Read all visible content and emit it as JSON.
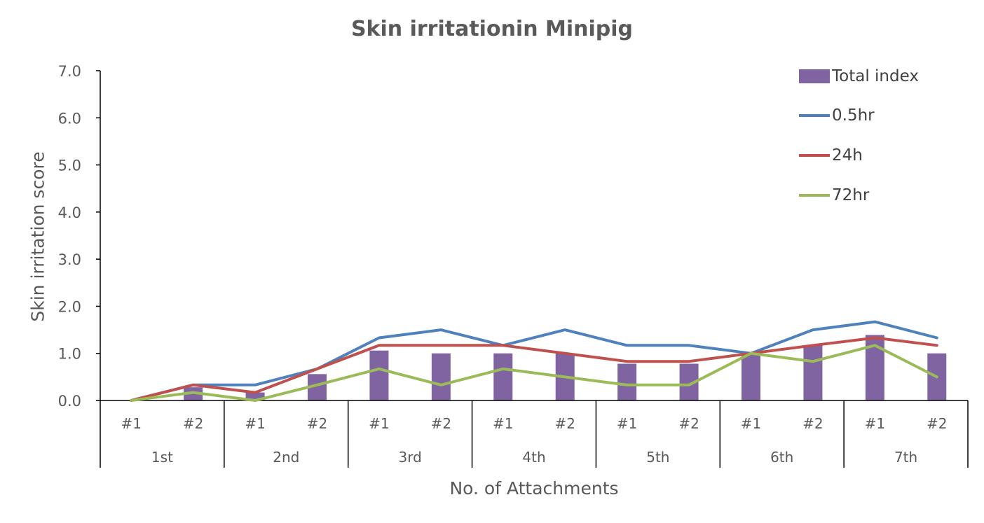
{
  "chart_data": {
    "type": "bar",
    "title": "Skin irritationin Minipig",
    "xlabel": "No. of Attachments",
    "ylabel": "Skin irritation score",
    "ylim": [
      0,
      7
    ],
    "yticks": [
      "0.0",
      "1.0",
      "2.0",
      "3.0",
      "4.0",
      "5.0",
      "6.0",
      "7.0"
    ],
    "categories": [
      "#1",
      "#2",
      "#1",
      "#2",
      "#1",
      "#2",
      "#1",
      "#2",
      "#1",
      "#2",
      "#1",
      "#2",
      "#1",
      "#2"
    ],
    "groups": [
      "1st",
      "2nd",
      "3rd",
      "4th",
      "5th",
      "6th",
      "7th"
    ],
    "series": [
      {
        "name": "Total index",
        "kind": "bar",
        "color": "#8064A2",
        "values": [
          0.0,
          0.28,
          0.17,
          0.56,
          1.06,
          1.0,
          1.0,
          1.0,
          0.78,
          0.78,
          1.0,
          1.17,
          1.39,
          1.0
        ]
      },
      {
        "name": "0.5hr",
        "kind": "line",
        "color": "#4F81BD",
        "values": [
          0.0,
          0.33,
          0.33,
          0.67,
          1.33,
          1.5,
          1.17,
          1.5,
          1.17,
          1.17,
          1.0,
          1.5,
          1.67,
          1.33
        ]
      },
      {
        "name": "24h",
        "kind": "line",
        "color": "#C0504D",
        "values": [
          0.0,
          0.33,
          0.17,
          0.67,
          1.17,
          1.17,
          1.17,
          1.0,
          0.83,
          0.83,
          1.0,
          1.17,
          1.33,
          1.17
        ]
      },
      {
        "name": "72hr",
        "kind": "line",
        "color": "#9BBB59",
        "values": [
          0.0,
          0.17,
          0.0,
          0.33,
          0.67,
          0.33,
          0.67,
          0.5,
          0.33,
          0.33,
          1.0,
          0.83,
          1.17,
          0.5
        ]
      }
    ],
    "legend_position": "top-right",
    "grid": false
  }
}
